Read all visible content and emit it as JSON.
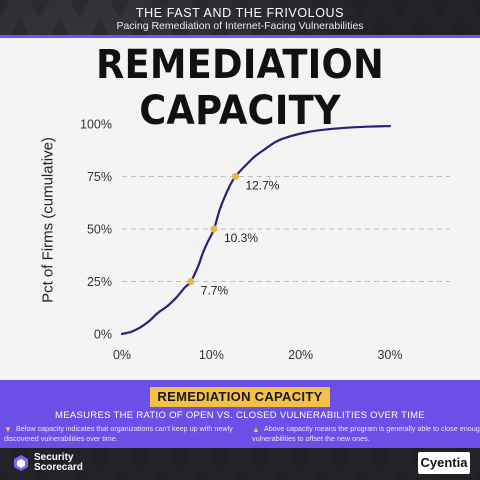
{
  "header": {
    "title": "THE FAST AND THE FRIVOLOUS",
    "subtitle": "Pacing Remediation of Internet-Facing Vulnerabilities"
  },
  "main_title": "REMEDIATION CAPACITY",
  "chart_data": {
    "type": "line",
    "ylabel": "Pct of Firms (cumulative)",
    "xlabel": "",
    "xlim": [
      0,
      30
    ],
    "ylim": [
      0,
      100
    ],
    "x_ticks": [
      "0%",
      "10%",
      "20%",
      "30%"
    ],
    "y_ticks": [
      "0%",
      "25%",
      "50%",
      "75%",
      "100%"
    ],
    "grid": "horizontal dashed lines at 25%, 50%, 75%",
    "legend": "none",
    "line_color": "#2d1f7a",
    "marker_color": "#e8b84a",
    "series": [
      {
        "x": [
          0,
          1,
          2,
          3,
          4,
          5,
          6,
          7,
          7.7,
          8.5,
          9,
          9.5,
          10.3,
          11,
          12,
          12.7,
          14,
          15,
          16,
          17,
          18,
          20,
          22,
          25,
          28,
          30
        ],
        "y": [
          0,
          1,
          3,
          6,
          10,
          13,
          17,
          22,
          25,
          32,
          38,
          43,
          50,
          60,
          70,
          75,
          81,
          85,
          88,
          91,
          93,
          95.5,
          97,
          98.2,
          98.8,
          99
        ]
      }
    ],
    "annotations": [
      {
        "x": 7.7,
        "y": 25,
        "label": "7.7%"
      },
      {
        "x": 10.3,
        "y": 50,
        "label": "10.3%"
      },
      {
        "x": 12.7,
        "y": 75,
        "label": "12.7%"
      }
    ]
  },
  "footer": {
    "badge": "REMEDIATION CAPACITY",
    "measures": "MEASURES THE RATIO OF OPEN VS. CLOSED VULNERABILITIES OVER TIME",
    "note_left": "Below capacity indicates that organizations can't keep up with newly discovered vulnerabilities over time.",
    "note_right": "Above capacity means the program is generally able to close enough vulnerabilities to offset the new ones.",
    "logo_left_line1": "Security",
    "logo_left_line2": "Scorecard",
    "logo_right": "Cyentia"
  }
}
